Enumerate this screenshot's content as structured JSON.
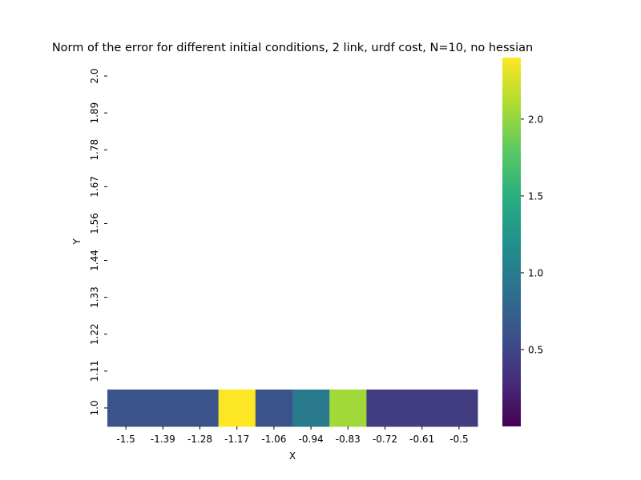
{
  "chart_data": {
    "type": "heatmap",
    "title": "Norm of the error for different initial conditions, 2 link, urdf cost, N=10, no hessian",
    "xlabel": "X",
    "ylabel": "Y",
    "x_ticks": [
      "-1.5",
      "-1.39",
      "-1.28",
      "-1.17",
      "-1.06",
      "-0.94",
      "-0.83",
      "-0.72",
      "-0.61",
      "-0.5"
    ],
    "y_ticks": [
      "2.0",
      "1.89",
      "1.78",
      "1.67",
      "1.56",
      "1.44",
      "1.33",
      "1.22",
      "1.11",
      "1.0"
    ],
    "rows": [
      {
        "y": "1.0",
        "values": [
          0.62,
          0.62,
          0.62,
          2.4,
          0.62,
          0.98,
          2.05,
          0.42,
          0.42,
          0.42
        ]
      }
    ],
    "empty_rows": [
      "2.0",
      "1.89",
      "1.78",
      "1.67",
      "1.56",
      "1.44",
      "1.33",
      "1.22",
      "1.11"
    ],
    "colorbar": {
      "colormap": "viridis",
      "min": 0.0,
      "max": 2.4,
      "ticks": [
        0.5,
        1.0,
        1.5,
        2.0
      ],
      "tick_labels": [
        "0.5",
        "1.0",
        "1.5",
        "2.0"
      ]
    },
    "grid": false,
    "legend": "none"
  }
}
